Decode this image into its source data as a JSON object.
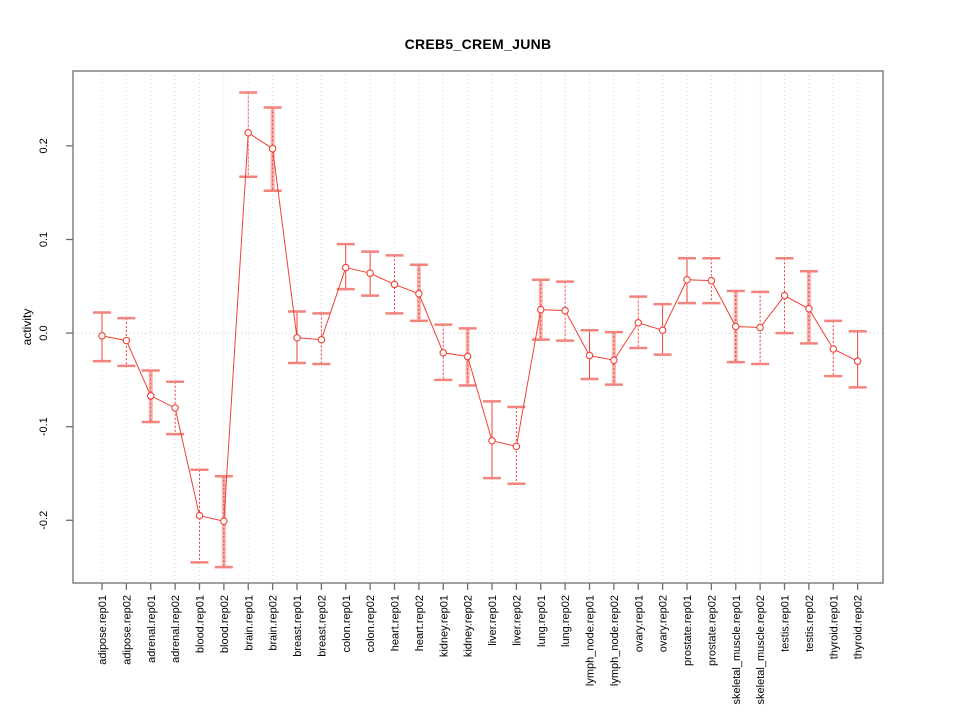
{
  "figure": {
    "title": "CREB5_CREM_JUNB",
    "ylabel": "activity"
  },
  "chart_data": {
    "type": "line",
    "title": "CREB5_CREM_JUNB",
    "xlabel": "",
    "ylabel": "activity",
    "legend": "none",
    "grid": "vertical-dotted-per-category",
    "zero_reference_line": true,
    "marker": "open-circle",
    "error_bars": true,
    "yticks": [
      -0.2,
      -0.1,
      0.0,
      0.1,
      0.2
    ],
    "ylim": [
      -0.267,
      0.28
    ],
    "categories": [
      "adipose.rep01",
      "adipose.rep02",
      "adrenal.rep01",
      "adrenal.rep02",
      "blood.rep01",
      "blood.rep02",
      "brain.rep01",
      "brain.rep02",
      "breast.rep01",
      "breast.rep02",
      "colon.rep01",
      "colon.rep02",
      "heart.rep01",
      "heart.rep02",
      "kidney.rep01",
      "kidney.rep02",
      "liver.rep01",
      "liver.rep02",
      "lung.rep01",
      "lung.rep02",
      "lymph_node.rep01",
      "lymph_node.rep02",
      "ovary.rep01",
      "ovary.rep02",
      "prostate.rep01",
      "prostate.rep02",
      "skeletal_muscle.rep01",
      "skeletal_muscle.rep02",
      "testis.rep01",
      "testis.rep02",
      "thyroid.rep01",
      "thyroid.rep02"
    ],
    "series": [
      {
        "name": "activity",
        "values": [
          -0.003,
          -0.008,
          -0.067,
          -0.08,
          -0.195,
          -0.201,
          0.214,
          0.197,
          -0.005,
          -0.007,
          0.07,
          0.064,
          0.052,
          0.042,
          -0.021,
          -0.025,
          -0.115,
          -0.121,
          0.025,
          0.024,
          -0.024,
          -0.029,
          0.011,
          0.003,
          0.057,
          0.056,
          0.007,
          0.006,
          0.04,
          0.026,
          -0.017,
          -0.03
        ],
        "ci_upper": [
          0.022,
          0.016,
          -0.04,
          -0.052,
          -0.146,
          -0.153,
          0.257,
          0.241,
          0.023,
          0.021,
          0.095,
          0.087,
          0.083,
          0.073,
          0.009,
          0.005,
          -0.073,
          -0.079,
          0.057,
          0.055,
          0.003,
          0.001,
          0.039,
          0.031,
          0.08,
          0.08,
          0.045,
          0.044,
          0.08,
          0.066,
          0.013,
          0.002
        ],
        "ci_lower": [
          -0.03,
          -0.035,
          -0.095,
          -0.108,
          -0.245,
          -0.25,
          0.167,
          0.152,
          -0.032,
          -0.033,
          0.047,
          0.04,
          0.021,
          0.013,
          -0.05,
          -0.056,
          -0.155,
          -0.161,
          -0.007,
          -0.008,
          -0.049,
          -0.055,
          -0.016,
          -0.023,
          0.032,
          0.032,
          -0.031,
          -0.033,
          0.0,
          -0.011,
          -0.046,
          -0.058
        ]
      }
    ],
    "error_bar_styles": [
      "solid",
      "dashed",
      "band",
      "dashed",
      "dashed",
      "band",
      "dashed",
      "band",
      "solid",
      "dashed",
      "solid",
      "solid",
      "dashed",
      "band",
      "dashed",
      "band",
      "solid",
      "dashed",
      "band",
      "dashed",
      "solid",
      "band",
      "dashed",
      "solid",
      "solid",
      "dashed",
      "band",
      "dashed",
      "dashed",
      "band",
      "dashed",
      "solid"
    ],
    "colors": {
      "line": "#ef4136",
      "band": "#f7b2ad",
      "cap": "#f2837d",
      "grid": "#d8d8d8",
      "zero": "#d3d3d3",
      "frame": "#6e6e6e",
      "text": "#000000"
    }
  }
}
